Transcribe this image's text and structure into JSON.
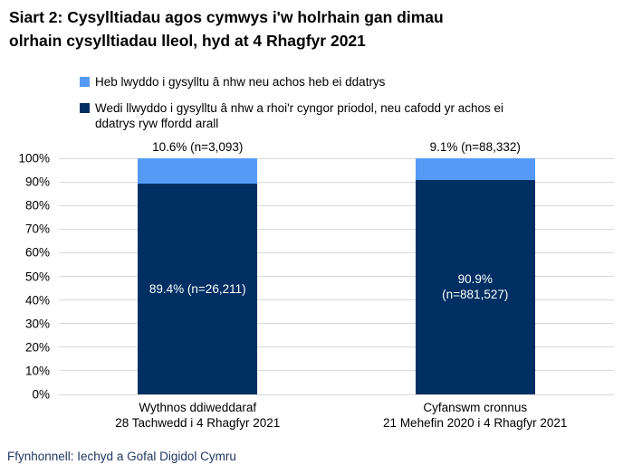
{
  "title": "Siart 2: Cysylltiadau agos cymwys i'w holrhain gan dimau\nolrhain cysylltiadau lleol, hyd at 4 Rhagfyr 2021",
  "legend": {
    "items": [
      {
        "label": "Heb lwyddo i gysylltu â nhw neu achos heb ei ddatrys",
        "color": "#559AF7"
      },
      {
        "label": "Wedi llwyddo i gysylltu â nhw a rhoi'r cyngor priodol, neu cafodd yr achos ei\nddatrys ryw ffordd arall",
        "color": "#002F63"
      }
    ]
  },
  "source": "Ffynhonnell: Iechyd a Gofal Digidol Cymru",
  "colors": {
    "unresolved": "#559AF7",
    "resolved": "#002F63",
    "gridline": "#d9d9d9",
    "source_text": "#203864"
  },
  "chart_data": {
    "type": "bar",
    "stacked": true,
    "title": "Siart 2: Cysylltiadau agos cymwys i'w holrhain gan dimau olrhain cysylltiadau lleol, hyd at 4 Rhagfyr 2021",
    "categories": [
      "Wythnos ddiweddaraf\n28 Tachwedd i 4 Rhagfyr 2021",
      "Cyfanswm cronnus\n21 Mehefin 2020 i 4 Rhagfyr 2021"
    ],
    "series": [
      {
        "name": "Wedi llwyddo i gysylltu â nhw a rhoi'r cyngor priodol, neu cafodd yr achos ei ddatrys ryw ffordd arall",
        "color": "#002F63",
        "values": [
          89.4,
          90.9
        ],
        "counts": [
          26211,
          881527
        ],
        "labels": [
          "89.4% (n=26,211)",
          "90.9%\n(n=881,527)"
        ],
        "label_placement": "inside"
      },
      {
        "name": "Heb lwyddo i gysylltu â nhw neu achos heb ei ddatrys",
        "color": "#559AF7",
        "values": [
          10.6,
          9.1
        ],
        "counts": [
          3093,
          88332
        ],
        "labels": [
          "10.6% (n=3,093)",
          "9.1% (n=88,332)"
        ],
        "label_placement": "above"
      }
    ],
    "xlabel": "",
    "ylabel": "",
    "ylim": [
      0,
      100
    ],
    "yticks": [
      "0%",
      "10%",
      "20%",
      "30%",
      "40%",
      "50%",
      "60%",
      "70%",
      "80%",
      "90%",
      "100%"
    ],
    "grid": true,
    "legend_position": "top-left"
  }
}
